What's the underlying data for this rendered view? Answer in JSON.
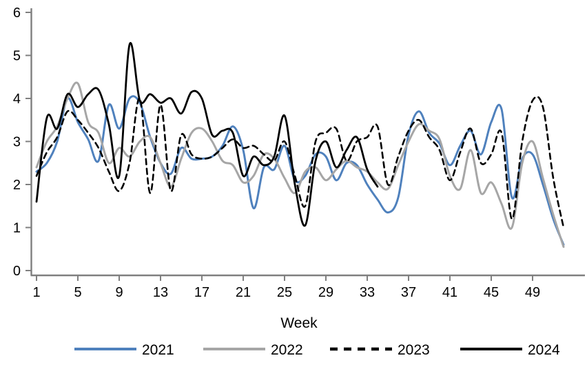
{
  "chart_data": {
    "type": "line",
    "title": "",
    "xlabel": "Week",
    "ylabel": "",
    "xlim": [
      1,
      53
    ],
    "ylim": [
      0,
      6
    ],
    "x_ticks": [
      1,
      5,
      9,
      13,
      17,
      21,
      25,
      29,
      33,
      37,
      41,
      45,
      49
    ],
    "y_ticks": [
      0,
      1,
      2,
      3,
      4,
      5,
      6
    ],
    "grid": "off",
    "legend_position": "bottom-center",
    "axis_color": "#7F7F7F",
    "x_unit": "week_number",
    "x_start": 1,
    "series": [
      {
        "name": "2021",
        "color": "#4F81BD",
        "line_style": "solid",
        "values": [
          2.3,
          2.5,
          3.0,
          4.0,
          3.45,
          3.05,
          2.55,
          3.85,
          3.3,
          4.0,
          3.9,
          3.1,
          2.5,
          2.25,
          2.85,
          2.6,
          2.6,
          2.65,
          2.9,
          3.35,
          2.8,
          1.45,
          2.4,
          2.35,
          2.9,
          2.1,
          2.2,
          2.7,
          2.65,
          2.1,
          2.5,
          2.45,
          2.0,
          1.65,
          1.35,
          1.7,
          3.15,
          3.7,
          3.2,
          2.95,
          2.45,
          2.9,
          3.25,
          2.7,
          3.45,
          3.75,
          1.7,
          2.6,
          2.7,
          2.0,
          1.2,
          0.6
        ]
      },
      {
        "name": "2022",
        "color": "#A6A6A6",
        "line_style": "solid",
        "values": [
          2.4,
          3.0,
          3.35,
          4.0,
          4.35,
          3.45,
          3.2,
          2.5,
          2.85,
          2.65,
          3.0,
          3.1,
          2.5,
          1.95,
          2.6,
          3.2,
          3.3,
          3.0,
          2.55,
          2.45,
          2.05,
          2.2,
          2.7,
          2.6,
          2.15,
          1.8,
          2.3,
          2.4,
          2.1,
          2.35,
          2.55,
          2.4,
          2.3,
          2.05,
          1.9,
          2.45,
          3.0,
          3.4,
          3.25,
          3.05,
          2.2,
          1.9,
          2.8,
          1.8,
          2.05,
          1.55,
          1.0,
          2.5,
          3.0,
          2.15,
          1.3,
          0.55
        ]
      },
      {
        "name": "2023",
        "color": "#000000",
        "line_style": "dashed",
        "values": [
          2.2,
          2.75,
          3.1,
          3.7,
          3.5,
          3.2,
          2.85,
          2.3,
          1.85,
          2.5,
          4.0,
          1.8,
          3.85,
          1.85,
          3.15,
          2.7,
          2.6,
          2.65,
          2.85,
          3.05,
          2.85,
          2.9,
          2.7,
          2.55,
          3.0,
          2.2,
          1.5,
          3.0,
          3.2,
          3.3,
          2.55,
          3.0,
          3.1,
          3.35,
          2.0,
          2.65,
          3.25,
          3.5,
          3.1,
          2.8,
          2.1,
          2.75,
          3.3,
          2.5,
          2.7,
          3.2,
          1.2,
          3.0,
          3.95,
          3.8,
          2.15,
          1.0
        ]
      },
      {
        "name": "2024",
        "color": "#000000",
        "line_style": "solid",
        "values": [
          1.6,
          3.55,
          3.3,
          4.1,
          3.8,
          4.1,
          4.2,
          3.4,
          2.2,
          5.25,
          3.95,
          4.1,
          3.9,
          4.0,
          3.65,
          4.15,
          4.0,
          3.15,
          3.25,
          3.2,
          2.2,
          2.65,
          2.45,
          2.65,
          3.6,
          2.0,
          1.05,
          2.55,
          3.0,
          2.4,
          2.8,
          3.1,
          2.35,
          1.95
        ]
      }
    ]
  }
}
